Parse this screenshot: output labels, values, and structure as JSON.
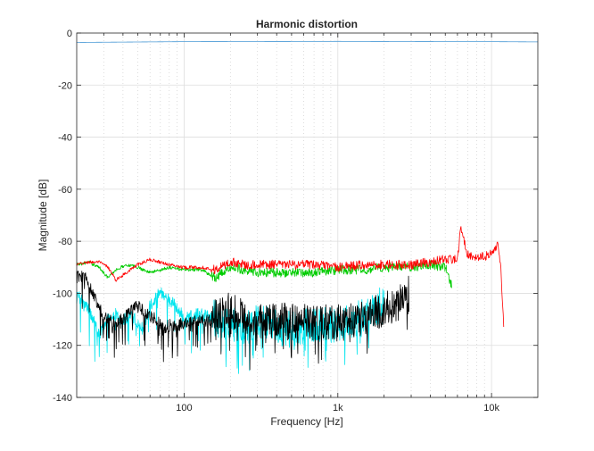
{
  "chart_data": {
    "type": "line",
    "title": "Harmonic distortion",
    "xlabel": "Frequency [Hz]",
    "ylabel": "Magnitude [dB]",
    "xscale": "log",
    "xlim": [
      20,
      20000
    ],
    "ylim": [
      -140,
      0
    ],
    "grid": true,
    "legend": "none",
    "xticks": [
      100,
      1000,
      10000
    ],
    "xtick_labels": [
      "100",
      "1k",
      "10k"
    ],
    "yticks": [
      0,
      -20,
      -40,
      -60,
      -80,
      -100,
      -120,
      -140
    ],
    "ytick_labels": [
      "0",
      "-20",
      "-40",
      "-60",
      "-80",
      "-100",
      "-120",
      "-140"
    ],
    "series": [
      {
        "color": "#4c9bd6",
        "noise": 0,
        "x": [
          20,
          100,
          1000,
          5000,
          10000,
          20000
        ],
        "y": [
          -3.6,
          -3.3,
          -3.2,
          -3.3,
          -3.3,
          -3.4
        ]
      },
      {
        "color": "#ff0000",
        "noise": 1.8,
        "x": [
          20,
          24,
          28,
          32,
          36,
          42,
          50,
          60,
          70,
          80,
          100,
          130,
          160,
          200,
          250,
          300,
          400,
          500,
          700,
          1000,
          1500,
          2000,
          3000,
          4000,
          5000,
          6000,
          6300,
          7000,
          8000,
          9000,
          10000,
          11000,
          11500,
          12000
        ],
        "y": [
          -89,
          -88,
          -88,
          -90,
          -95,
          -92,
          -89,
          -87,
          -88,
          -89,
          -90,
          -90,
          -91,
          -88,
          -89,
          -89,
          -89,
          -89,
          -89,
          -90,
          -89,
          -89,
          -89,
          -88,
          -87,
          -87,
          -75,
          -85,
          -86,
          -86,
          -85,
          -81,
          -90,
          -112
        ]
      },
      {
        "color": "#00cc00",
        "noise": 1.8,
        "x": [
          20,
          24,
          28,
          32,
          36,
          42,
          50,
          60,
          70,
          80,
          100,
          130,
          160,
          200,
          250,
          300,
          400,
          500,
          700,
          1000,
          1500,
          2000,
          3000,
          4000,
          5000,
          5500
        ],
        "y": [
          -89,
          -88,
          -90,
          -94,
          -91,
          -89,
          -90,
          -92,
          -91,
          -90,
          -91,
          -91,
          -94,
          -90,
          -91,
          -92,
          -92,
          -92,
          -92,
          -91,
          -91,
          -90,
          -90,
          -89,
          -90,
          -97
        ]
      },
      {
        "color": "#000000",
        "noise": 7,
        "x": [
          20,
          23,
          26,
          30,
          35,
          40,
          45,
          50,
          58,
          65,
          75,
          85,
          100,
          120,
          150,
          200,
          250,
          300,
          400,
          500,
          700,
          1000,
          1500,
          2000,
          2500,
          2900
        ],
        "y": [
          -93,
          -94,
          -101,
          -109,
          -111,
          -110,
          -107,
          -105,
          -108,
          -110,
          -113,
          -112,
          -112,
          -111,
          -110,
          -106,
          -110,
          -111,
          -110,
          -111,
          -111,
          -111,
          -110,
          -106,
          -104,
          -100
        ]
      },
      {
        "color": "#00e5ee",
        "noise": 7,
        "x": [
          20,
          22,
          25,
          28,
          32,
          36,
          40,
          45,
          50,
          55,
          60,
          70,
          80,
          90,
          100,
          120,
          150,
          200,
          250,
          300,
          400,
          500,
          700,
          1000,
          1300,
          1700,
          2000
        ],
        "y": [
          -101,
          -103,
          -108,
          -116,
          -110,
          -108,
          -111,
          -107,
          -112,
          -113,
          -105,
          -99,
          -103,
          -105,
          -110,
          -108,
          -109,
          -112,
          -114,
          -111,
          -113,
          -114,
          -112,
          -112,
          -110,
          -106,
          -104
        ]
      }
    ]
  }
}
